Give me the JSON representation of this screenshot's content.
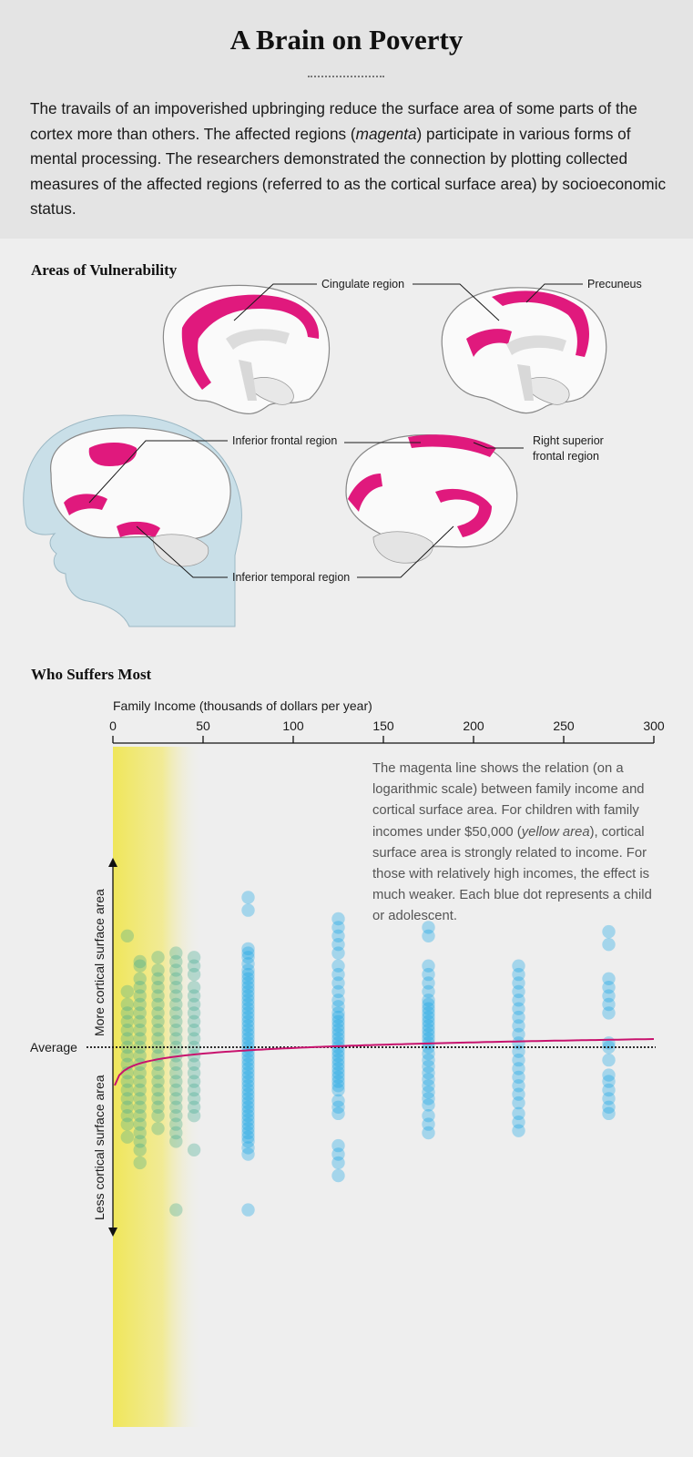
{
  "header": {
    "title": "A Brain on Poverty",
    "intro_part1": "The travails of an impoverished upbringing reduce the surface area of some parts of the cortex more than others. The affected regions (",
    "intro_emph": "magenta",
    "intro_part2": ") participate in various forms of mental processing. The researchers demonstrated the connection by plotting collected measures of the affected regions (referred to as the cortical surface area) by socioeconomic status."
  },
  "vulnerability": {
    "section_title": "Areas of Vulnerability",
    "labels": {
      "cingulate": "Cingulate region",
      "precuneus": "Precuneus",
      "inferior_frontal": "Inferior frontal region",
      "right_superior_1": "Right superior",
      "right_superior_2": "frontal region",
      "inferior_temporal": "Inferior temporal region"
    }
  },
  "chart_section": {
    "section_title": "Who Suffers Most",
    "note_part1": "The magenta line shows the relation (on a logarithmic scale) between family income and cortical surface area. For children with family incomes under $50,000 (",
    "note_emph": "yellow area",
    "note_part2": "), cortical surface area is strongly related to income. For those with relatively high incomes, the effect is much weaker. Each blue dot represents a child or adolescent."
  },
  "colors": {
    "magenta": "#d9127a",
    "dot_blue": "#1aa7e6",
    "yellow": "#efe65a"
  },
  "chart_data": {
    "type": "scatter",
    "xlabel": "Family Income (thousands of dollars per year)",
    "xticks": [
      0,
      50,
      100,
      150,
      200,
      250,
      300
    ],
    "xlim": [
      0,
      300
    ],
    "ylabel_up": "More cortical surface area",
    "ylabel_down": "Less cortical surface area",
    "reference_line_label": "Average",
    "highlight_band": {
      "x_from": 0,
      "x_to": 50,
      "label": "yellow area"
    },
    "trend": {
      "scale": "log",
      "description": "magenta line"
    },
    "columns": [
      {
        "x": 75,
        "y": [
          3.5,
          3.2,
          2.3,
          2.2,
          2.1,
          1.95,
          1.8,
          1.7,
          1.6,
          1.5,
          1.4,
          1.3,
          1.2,
          1.1,
          1.0,
          0.9,
          0.8,
          0.7,
          0.6,
          0.5,
          0.4,
          0.3,
          0.2,
          0.1,
          0.0,
          -0.1,
          -0.2,
          -0.3,
          -0.4,
          -0.5,
          -0.6,
          -0.7,
          -0.8,
          -0.9,
          -1.0,
          -1.1,
          -1.2,
          -1.3,
          -1.4,
          -1.5,
          -1.6,
          -1.7,
          -1.8,
          -1.9,
          -2.0,
          -2.1,
          -2.2,
          -2.35,
          -2.5,
          -3.8
        ]
      },
      {
        "x": 125,
        "y": [
          3.0,
          2.8,
          2.6,
          2.4,
          2.2,
          1.9,
          1.7,
          1.5,
          1.3,
          1.1,
          0.95,
          0.8,
          0.7,
          0.6,
          0.5,
          0.4,
          0.3,
          0.2,
          0.1,
          0.0,
          -0.1,
          -0.2,
          -0.3,
          -0.4,
          -0.5,
          -0.6,
          -0.7,
          -0.8,
          -0.9,
          -1.0,
          -1.25,
          -1.4,
          -1.55,
          -2.3,
          -2.5,
          -2.7,
          -3.0
        ]
      },
      {
        "x": 175,
        "y": [
          2.8,
          2.6,
          1.9,
          1.7,
          1.5,
          1.3,
          1.1,
          1.0,
          0.9,
          0.8,
          0.7,
          0.6,
          0.5,
          0.4,
          0.3,
          0.2,
          0.1,
          0.0,
          -0.15,
          -0.3,
          -0.45,
          -0.6,
          -0.75,
          -0.9,
          -1.05,
          -1.2,
          -1.35,
          -1.6,
          -1.8,
          -2.0
        ]
      },
      {
        "x": 225,
        "y": [
          1.9,
          1.7,
          1.5,
          1.3,
          1.1,
          0.9,
          0.7,
          0.5,
          0.3,
          0.1,
          -0.1,
          -0.3,
          -0.5,
          -0.7,
          -0.9,
          -1.1,
          -1.3,
          -1.55,
          -1.75,
          -1.95
        ]
      },
      {
        "x": 275,
        "y": [
          2.7,
          2.4,
          1.6,
          1.4,
          1.2,
          1.0,
          0.8,
          0.1,
          0.0,
          -0.3,
          -0.65,
          -0.8,
          -1.0,
          -1.2,
          -1.4,
          -1.55
        ]
      }
    ],
    "low_income_points": [
      {
        "x": 8,
        "y": [
          2.6,
          1.3,
          1.0,
          0.8,
          0.6,
          0.4,
          0.2,
          0.0,
          -0.2,
          -0.4,
          -0.6,
          -0.8,
          -1.0,
          -1.2,
          -1.4,
          -1.6,
          -1.8,
          -2.1
        ]
      },
      {
        "x": 15,
        "y": [
          2.0,
          1.9,
          1.6,
          1.4,
          1.2,
          1.0,
          0.8,
          0.6,
          0.4,
          0.2,
          0.0,
          -0.2,
          -0.4,
          -0.6,
          -0.8,
          -1.0,
          -1.2,
          -1.4,
          -1.6,
          -1.8,
          -2.0,
          -2.2,
          -2.4,
          -2.7
        ]
      },
      {
        "x": 25,
        "y": [
          2.1,
          1.8,
          1.6,
          1.4,
          1.2,
          1.0,
          0.8,
          0.6,
          0.4,
          0.2,
          0.0,
          -0.2,
          -0.4,
          -0.6,
          -0.8,
          -1.0,
          -1.2,
          -1.4,
          -1.6,
          -1.9
        ]
      },
      {
        "x": 35,
        "y": [
          2.2,
          2.0,
          1.8,
          1.6,
          1.4,
          1.2,
          1.0,
          0.8,
          0.6,
          0.4,
          0.2,
          0.0,
          -0.2,
          -0.4,
          -0.6,
          -0.8,
          -1.0,
          -1.2,
          -1.4,
          -1.6,
          -1.8,
          -2.0,
          -2.2,
          -3.8
        ]
      },
      {
        "x": 45,
        "y": [
          2.1,
          1.9,
          1.7,
          1.4,
          1.2,
          1.0,
          0.8,
          0.6,
          0.4,
          0.2,
          0.0,
          -0.2,
          -0.4,
          -0.6,
          -0.8,
          -1.0,
          -1.2,
          -1.4,
          -1.6,
          -2.4
        ]
      }
    ]
  }
}
